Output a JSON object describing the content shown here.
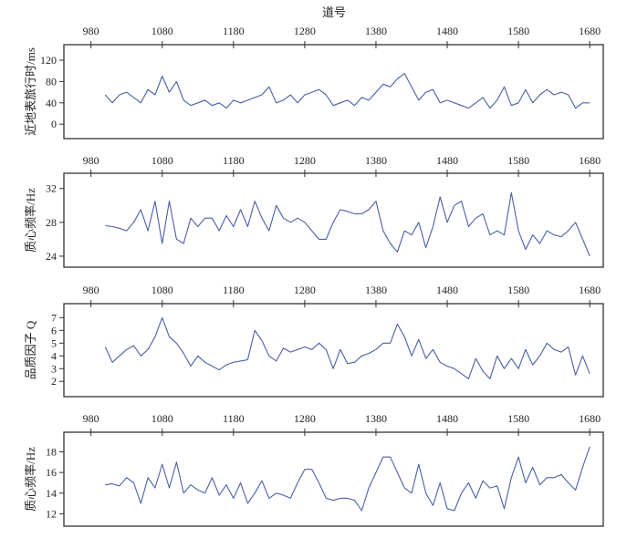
{
  "chart_data": [
    {
      "type": "line",
      "title": "道号",
      "xlabel": "道号",
      "ylabel": "近地表旅行时/ms",
      "xlim": [
        942,
        1699
      ],
      "ylim": [
        -27,
        149
      ],
      "xticks": [
        980,
        1080,
        1180,
        1280,
        1380,
        1480,
        1580,
        1680
      ],
      "yticks": [
        0,
        40,
        80,
        120
      ],
      "grid": false,
      "color": "#4a5fa8",
      "x_start": 1000,
      "x_step": 10,
      "values": [
        55,
        40,
        55,
        60,
        50,
        40,
        65,
        55,
        90,
        60,
        80,
        45,
        35,
        40,
        45,
        35,
        40,
        30,
        45,
        40,
        45,
        50,
        55,
        70,
        40,
        45,
        55,
        40,
        55,
        60,
        65,
        55,
        35,
        40,
        45,
        35,
        50,
        45,
        60,
        75,
        70,
        85,
        95,
        70,
        45,
        60,
        65,
        40,
        45,
        40,
        35,
        30,
        40,
        50,
        30,
        45,
        70,
        35,
        40,
        65,
        40,
        55,
        65,
        55,
        60,
        55,
        30,
        40,
        40
      ]
    },
    {
      "type": "line",
      "ylabel": "质心频率/Hz",
      "xlim": [
        942,
        1699
      ],
      "ylim": [
        22.7,
        33.8
      ],
      "xticks": [
        980,
        1080,
        1180,
        1280,
        1380,
        1480,
        1580,
        1680
      ],
      "yticks": [
        24,
        28,
        32
      ],
      "grid": false,
      "color": "#4a5fa8",
      "x_start": 1000,
      "x_step": 10,
      "values": [
        27.6,
        27.5,
        27.3,
        27.0,
        28.0,
        29.5,
        27.0,
        30.5,
        25.5,
        30.5,
        26.0,
        25.5,
        28.5,
        27.5,
        28.5,
        28.5,
        27.0,
        28.8,
        27.5,
        29.5,
        27.5,
        30.5,
        28.5,
        27.0,
        30.0,
        28.5,
        28.0,
        28.5,
        28.0,
        27.0,
        26.0,
        26.0,
        28.0,
        29.5,
        29.3,
        29.0,
        29.0,
        29.5,
        30.5,
        27.0,
        25.5,
        24.5,
        27.0,
        26.5,
        28.0,
        25.0,
        27.5,
        31.0,
        28.0,
        30.0,
        30.5,
        27.5,
        28.5,
        29.0,
        26.5,
        27.0,
        26.5,
        31.5,
        27.0,
        24.8,
        26.5,
        25.5,
        27.0,
        26.5,
        26.3,
        27.0,
        28.0,
        26.0,
        24.0
      ]
    },
    {
      "type": "line",
      "ylabel": "品质因子 Q",
      "xlim": [
        942,
        1699
      ],
      "ylim": [
        0.8,
        8.1
      ],
      "xticks": [
        980,
        1080,
        1180,
        1280,
        1380,
        1480,
        1580,
        1680
      ],
      "yticks": [
        2,
        3,
        4,
        5,
        6,
        7
      ],
      "grid": false,
      "color": "#4a5fa8",
      "x_start": 1000,
      "x_step": 10,
      "values": [
        4.7,
        3.5,
        4.0,
        4.5,
        4.8,
        4.0,
        4.5,
        5.5,
        7.0,
        5.5,
        5.0,
        4.2,
        3.2,
        4.0,
        3.5,
        3.2,
        2.9,
        3.3,
        3.5,
        3.6,
        3.7,
        6.0,
        5.2,
        4.0,
        3.6,
        4.6,
        4.3,
        4.5,
        4.7,
        4.5,
        5.0,
        4.5,
        3.0,
        4.5,
        3.4,
        3.5,
        4.0,
        4.2,
        4.5,
        5.0,
        5.0,
        6.5,
        5.5,
        4.0,
        5.3,
        3.8,
        4.5,
        3.5,
        3.2,
        3.0,
        2.6,
        2.2,
        3.8,
        2.8,
        2.2,
        4.0,
        3.0,
        3.8,
        3.0,
        4.5,
        3.3,
        4.0,
        5.0,
        4.5,
        4.3,
        4.7,
        2.5,
        4.0,
        2.6
      ]
    },
    {
      "type": "line",
      "ylabel": "质心频率/Hz",
      "xlim": [
        942,
        1699
      ],
      "ylim": [
        10.8,
        19.9
      ],
      "xticks": [
        980,
        1080,
        1180,
        1280,
        1380,
        1480,
        1580,
        1680
      ],
      "yticks": [
        12,
        14,
        16,
        18
      ],
      "grid": false,
      "color": "#4a5fa8",
      "x_start": 1000,
      "x_step": 10,
      "values": [
        14.8,
        14.9,
        14.7,
        15.5,
        15.0,
        13.0,
        15.5,
        14.5,
        16.8,
        14.5,
        17.0,
        14.0,
        14.8,
        14.3,
        14.0,
        15.5,
        13.8,
        14.8,
        13.5,
        15.0,
        13.0,
        14.0,
        15.2,
        13.5,
        14.0,
        13.8,
        13.5,
        15.0,
        16.3,
        16.3,
        15.0,
        13.5,
        13.3,
        13.5,
        13.5,
        13.3,
        12.3,
        14.5,
        16.0,
        17.5,
        17.5,
        16.0,
        14.5,
        14.0,
        16.8,
        14.0,
        12.8,
        15.0,
        12.5,
        12.3,
        14.0,
        15.0,
        13.5,
        15.2,
        14.5,
        14.7,
        12.5,
        15.5,
        17.5,
        15.0,
        16.5,
        14.8,
        15.5,
        15.5,
        15.8,
        15.0,
        14.3,
        16.5,
        18.5
      ]
    }
  ]
}
